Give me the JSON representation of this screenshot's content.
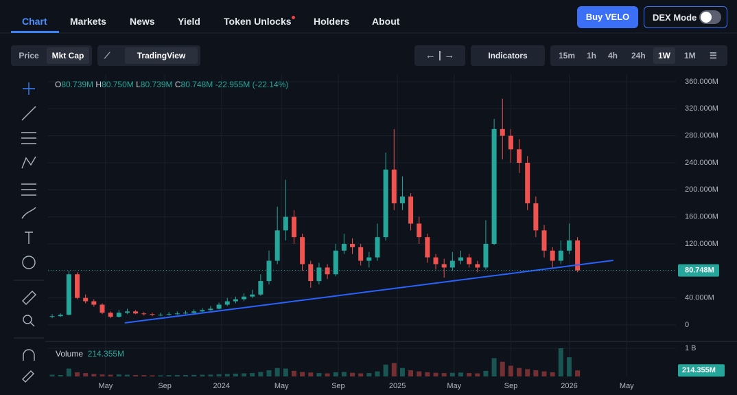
{
  "nav": {
    "items": [
      "Chart",
      "Markets",
      "News",
      "Yield",
      "Token Unlocks",
      "Holders",
      "About"
    ],
    "buy": "Buy VELO",
    "dex": "DEX Mode"
  },
  "toolbar": {
    "price": "Price",
    "mktcap": "Mkt Cap",
    "tradingview": "TradingView",
    "indicators": "Indicators",
    "intervals": [
      "15m",
      "1h",
      "4h",
      "24h",
      "1W",
      "1M"
    ]
  },
  "ohlc_legend": {
    "o_key": "O",
    "o": "80.739M",
    "h_key": "H",
    "h": "80.750M",
    "l_key": "L",
    "l": "80.739M",
    "c_key": "C",
    "c": "80.748M",
    "change": "-22.955M (-22.14%)"
  },
  "chart_data": {
    "type": "candlestick",
    "xlim": [
      -0.5,
      74.8
    ],
    "xticks": [
      {
        "value": 6.4,
        "label": "May"
      },
      {
        "value": 13.5,
        "label": "Sep"
      },
      {
        "value": 20.3,
        "label": "2024"
      },
      {
        "value": 27.5,
        "label": "May"
      },
      {
        "value": 34.3,
        "label": "Sep"
      },
      {
        "value": 41.4,
        "label": "2025"
      },
      {
        "value": 48.2,
        "label": "May"
      },
      {
        "value": 55,
        "label": "Sep"
      },
      {
        "value": 62,
        "label": "2026"
      },
      {
        "value": 68.9,
        "label": "May"
      }
    ],
    "ylim": [
      0,
      360
    ],
    "yticks": [
      0,
      {
        "value": 40,
        "label": "40.000M"
      },
      {
        "value": 80,
        "label": "80.000M"
      },
      {
        "value": 120,
        "label": "120.000M"
      },
      {
        "value": 160,
        "label": "160.000M"
      },
      {
        "value": 200,
        "label": "200.000M"
      },
      {
        "value": 240,
        "label": "240.000M"
      },
      {
        "value": 280,
        "label": "280.000M"
      },
      {
        "value": 320,
        "label": "320.000M"
      },
      {
        "value": 360,
        "label": "360.000M"
      }
    ],
    "up_color": "#26a69a",
    "down_color": "#ef5350",
    "ohlc": [
      [
        12,
        16,
        10,
        13
      ],
      [
        13,
        17,
        12,
        15
      ],
      [
        15,
        80,
        14,
        75
      ],
      [
        75,
        78,
        38,
        40
      ],
      [
        40,
        45,
        32,
        35
      ],
      [
        35,
        38,
        27,
        30
      ],
      [
        30,
        32,
        16,
        18
      ],
      [
        18,
        20,
        10,
        12
      ],
      [
        12,
        22,
        11,
        18
      ],
      [
        18,
        24,
        16,
        20
      ],
      [
        20,
        22,
        16,
        17
      ],
      [
        17,
        19,
        14,
        16
      ],
      [
        16,
        18,
        13,
        15
      ],
      [
        15,
        18,
        13,
        15
      ],
      [
        15,
        19,
        14,
        16
      ],
      [
        16,
        20,
        15,
        17
      ],
      [
        17,
        21,
        16,
        18
      ],
      [
        18,
        23,
        17,
        20
      ],
      [
        20,
        25,
        19,
        22
      ],
      [
        22,
        28,
        21,
        24
      ],
      [
        24,
        33,
        23,
        30
      ],
      [
        30,
        40,
        28,
        35
      ],
      [
        35,
        42,
        32,
        38
      ],
      [
        38,
        47,
        35,
        42
      ],
      [
        42,
        52,
        40,
        45
      ],
      [
        45,
        75,
        43,
        65
      ],
      [
        65,
        110,
        60,
        95
      ],
      [
        95,
        175,
        90,
        140
      ],
      [
        140,
        215,
        125,
        160
      ],
      [
        160,
        170,
        120,
        130
      ],
      [
        130,
        135,
        80,
        90
      ],
      [
        90,
        95,
        55,
        65
      ],
      [
        65,
        92,
        60,
        85
      ],
      [
        85,
        90,
        68,
        75
      ],
      [
        75,
        120,
        72,
        110
      ],
      [
        110,
        135,
        105,
        120
      ],
      [
        120,
        128,
        105,
        115
      ],
      [
        115,
        120,
        88,
        95
      ],
      [
        95,
        108,
        85,
        100
      ],
      [
        100,
        150,
        95,
        130
      ],
      [
        130,
        255,
        125,
        230
      ],
      [
        230,
        290,
        170,
        180
      ],
      [
        180,
        220,
        170,
        190
      ],
      [
        190,
        195,
        140,
        150
      ],
      [
        150,
        160,
        120,
        130
      ],
      [
        130,
        135,
        92,
        100
      ],
      [
        100,
        105,
        82,
        90
      ],
      [
        90,
        98,
        70,
        85
      ],
      [
        85,
        108,
        80,
        95
      ],
      [
        95,
        110,
        90,
        100
      ],
      [
        100,
        105,
        85,
        90
      ],
      [
        90,
        95,
        78,
        85
      ],
      [
        85,
        155,
        82,
        120
      ],
      [
        120,
        305,
        118,
        290
      ],
      [
        290,
        335,
        245,
        280
      ],
      [
        280,
        290,
        240,
        260
      ],
      [
        260,
        275,
        225,
        240
      ],
      [
        240,
        250,
        170,
        180
      ],
      [
        180,
        190,
        130,
        140
      ],
      [
        140,
        148,
        100,
        110
      ],
      [
        110,
        115,
        85,
        95
      ],
      [
        95,
        125,
        90,
        110
      ],
      [
        110,
        150,
        105,
        125
      ],
      [
        125,
        130,
        78,
        80.748
      ]
    ],
    "last_price": {
      "value": 80.748,
      "label": "80.748M"
    },
    "trendline": {
      "from": [
        8.7,
        3
      ],
      "to": [
        67.3,
        95.6
      ],
      "color": "#2962ff"
    },
    "volume": {
      "title": "Volume",
      "label": "214.355M",
      "ylim": [
        0,
        1000
      ],
      "yticks": [
        {
          "value": 1000,
          "label": "1 B"
        }
      ],
      "values": [
        60,
        50,
        280,
        150,
        120,
        90,
        70,
        60,
        70,
        60,
        50,
        45,
        40,
        40,
        45,
        50,
        50,
        55,
        60,
        65,
        80,
        90,
        100,
        110,
        120,
        160,
        220,
        300,
        280,
        200,
        160,
        140,
        120,
        110,
        150,
        160,
        130,
        110,
        120,
        180,
        420,
        480,
        300,
        220,
        180,
        150,
        130,
        120,
        130,
        140,
        120,
        110,
        200,
        650,
        520,
        380,
        300,
        260,
        220,
        180,
        150,
        1000,
        680,
        214.355
      ]
    }
  }
}
